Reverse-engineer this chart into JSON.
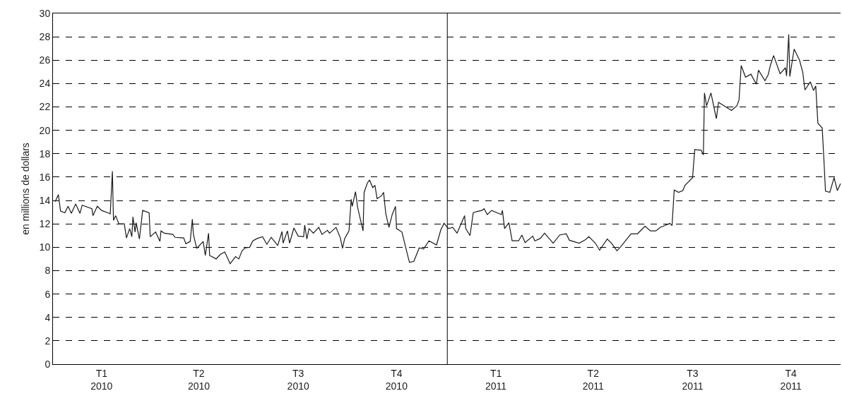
{
  "chart_data": {
    "type": "line",
    "ylabel": "en millions de dollars",
    "xlim": [
      "2010-01-01",
      "2011-12-31"
    ],
    "xticks": [
      {
        "value": "2010-02-15",
        "label": "T1\n2010"
      },
      {
        "value": "2010-05-16",
        "label": "T2\n2010"
      },
      {
        "value": "2010-08-16",
        "label": "T3\n2010"
      },
      {
        "value": "2010-11-15",
        "label": "T4\n2010"
      },
      {
        "value": "2011-02-15",
        "label": "T1\n2011"
      },
      {
        "value": "2011-05-16",
        "label": "T2\n2011"
      },
      {
        "value": "2011-08-16",
        "label": "T3\n2011"
      },
      {
        "value": "2011-11-15",
        "label": "T4\n2011"
      }
    ],
    "ylim": [
      0,
      30
    ],
    "yticks": [
      0,
      2,
      4,
      6,
      8,
      10,
      12,
      14,
      16,
      18,
      20,
      22,
      24,
      26,
      28,
      30
    ],
    "grid": "y",
    "marker": "none",
    "line_style": "solid",
    "ref_lines": [
      {
        "axis": "x",
        "value": "2011-01-01",
        "label": null,
        "color": "#000000",
        "line_style": "solid"
      }
    ],
    "series": [
      {
        "color": "#1a1a1a",
        "x": [
          "2010-01-03",
          "2010-01-06",
          "2010-01-08",
          "2010-01-12",
          "2010-01-15",
          "2010-01-18",
          "2010-01-22",
          "2010-01-26",
          "2010-01-28",
          "2010-02-06",
          "2010-02-07",
          "2010-02-11",
          "2010-02-15",
          "2010-02-22",
          "2010-02-23",
          "2010-02-25",
          "2010-02-26",
          "2010-02-28",
          "2010-03-03",
          "2010-03-08",
          "2010-03-10",
          "2010-03-13",
          "2010-03-15",
          "2010-03-16",
          "2010-03-18",
          "2010-03-19",
          "2010-03-22",
          "2010-03-25",
          "2010-03-31",
          "2010-04-01",
          "2010-04-06",
          "2010-04-10",
          "2010-04-11",
          "2010-04-14",
          "2010-04-22",
          "2010-04-24",
          "2010-05-02",
          "2010-05-04",
          "2010-05-08",
          "2010-05-10",
          "2010-05-11",
          "2010-05-14",
          "2010-05-20",
          "2010-05-22",
          "2010-05-25",
          "2010-05-26",
          "2010-06-01",
          "2010-06-05",
          "2010-06-09",
          "2010-06-14",
          "2010-06-19",
          "2010-06-22",
          "2010-06-25",
          "2010-06-28",
          "2010-07-02",
          "2010-07-05",
          "2010-07-09",
          "2010-07-14",
          "2010-07-18",
          "2010-07-22",
          "2010-07-28",
          "2010-08-01",
          "2010-08-02",
          "2010-08-06",
          "2010-08-08",
          "2010-08-12",
          "2010-08-16",
          "2010-08-21",
          "2010-08-22",
          "2010-08-24",
          "2010-08-26",
          "2010-08-30",
          "2010-09-04",
          "2010-09-07",
          "2010-09-12",
          "2010-09-14",
          "2010-09-20",
          "2010-09-24",
          "2010-09-26",
          "2010-09-28",
          "2010-10-02",
          "2010-10-04",
          "2010-10-05",
          "2010-10-08",
          "2010-10-10",
          "2010-10-15",
          "2010-10-16",
          "2010-10-19",
          "2010-10-21",
          "2010-10-24",
          "2010-10-26",
          "2010-10-28",
          "2010-11-01",
          "2010-11-03",
          "2010-11-05",
          "2010-11-08",
          "2010-11-11",
          "2010-11-14",
          "2010-11-15",
          "2010-11-20",
          "2010-11-26",
          "2010-11-27",
          "2010-12-01",
          "2010-12-06",
          "2010-12-10",
          "2010-12-15",
          "2010-12-22",
          "2010-12-26",
          "2010-12-29",
          "2011-01-02",
          "2011-01-06",
          "2011-01-10",
          "2011-01-17",
          "2011-01-18",
          "2011-01-22",
          "2011-01-25",
          "2011-01-28",
          "2011-02-02",
          "2011-02-04",
          "2011-02-07",
          "2011-02-11",
          "2011-02-20",
          "2011-02-21",
          "2011-02-23",
          "2011-02-27",
          "2011-03-02",
          "2011-03-08",
          "2011-03-11",
          "2011-03-14",
          "2011-03-21",
          "2011-03-23",
          "2011-03-28",
          "2011-04-01",
          "2011-04-09",
          "2011-04-15",
          "2011-04-21",
          "2011-04-24",
          "2011-05-03",
          "2011-05-09",
          "2011-05-12",
          "2011-05-18",
          "2011-05-22",
          "2011-05-29",
          "2011-06-02",
          "2011-06-07",
          "2011-06-11",
          "2011-06-20",
          "2011-06-26",
          "2011-07-03",
          "2011-07-08",
          "2011-07-13",
          "2011-07-17",
          "2011-07-21",
          "2011-07-26",
          "2011-07-28",
          "2011-07-30",
          "2011-08-03",
          "2011-08-07",
          "2011-08-09",
          "2011-08-16",
          "2011-08-18",
          "2011-08-24",
          "2011-08-26",
          "2011-08-27",
          "2011-08-29",
          "2011-09-02",
          "2011-09-07",
          "2011-09-09",
          "2011-09-15",
          "2011-09-21",
          "2011-09-26",
          "2011-09-28",
          "2011-09-30",
          "2011-10-04",
          "2011-10-09",
          "2011-10-14",
          "2011-10-16",
          "2011-10-22",
          "2011-10-25",
          "2011-10-27",
          "2011-10-30",
          "2011-11-05",
          "2011-11-10",
          "2011-11-11",
          "2011-11-13",
          "2011-11-14",
          "2011-11-18",
          "2011-11-23",
          "2011-11-26",
          "2011-11-28",
          "2011-12-03",
          "2011-12-06",
          "2011-12-08",
          "2011-12-10",
          "2011-12-14",
          "2011-12-16",
          "2011-12-17",
          "2011-12-21",
          "2011-12-25",
          "2011-12-28",
          "2011-12-31"
        ],
        "values": [
          13.9,
          14.5,
          13.1,
          12.95,
          13.5,
          12.9,
          13.7,
          12.9,
          13.6,
          13.3,
          12.7,
          13.5,
          13.15,
          12.9,
          12.85,
          16.5,
          12.3,
          12.7,
          12.0,
          12.0,
          10.8,
          11.6,
          10.9,
          12.6,
          11.3,
          12.1,
          10.7,
          13.15,
          12.95,
          10.9,
          11.3,
          10.5,
          11.4,
          11.2,
          11.1,
          10.85,
          10.8,
          10.3,
          10.5,
          12.4,
          11.1,
          9.9,
          10.5,
          9.3,
          11.2,
          9.3,
          9.0,
          9.4,
          9.6,
          8.6,
          9.2,
          9.0,
          9.7,
          9.95,
          10.0,
          10.55,
          10.75,
          10.9,
          10.25,
          10.85,
          10.15,
          11.35,
          10.35,
          11.4,
          10.35,
          11.65,
          10.95,
          10.9,
          11.9,
          10.7,
          11.6,
          11.2,
          11.7,
          11.1,
          11.45,
          11.2,
          11.7,
          10.8,
          9.9,
          10.75,
          11.4,
          14.1,
          13.5,
          14.75,
          13.4,
          11.4,
          14.7,
          15.5,
          15.75,
          15.1,
          15.3,
          14.15,
          14.4,
          14.7,
          12.9,
          11.7,
          12.8,
          13.5,
          11.6,
          11.3,
          9.05,
          8.7,
          8.8,
          9.95,
          9.85,
          10.55,
          10.2,
          11.5,
          12.05,
          11.6,
          11.7,
          11.2,
          12.7,
          11.6,
          11.0,
          12.95,
          13.05,
          13.15,
          13.3,
          12.8,
          13.15,
          12.8,
          13.15,
          11.6,
          12.1,
          10.55,
          10.55,
          11.05,
          10.4,
          10.95,
          10.55,
          10.75,
          11.2,
          10.35,
          11.05,
          11.15,
          10.6,
          10.35,
          10.65,
          10.9,
          10.35,
          9.75,
          10.7,
          10.35,
          9.7,
          10.1,
          11.15,
          11.15,
          11.8,
          11.4,
          11.4,
          11.7,
          11.85,
          12.05,
          11.85,
          14.9,
          14.7,
          14.85,
          15.3,
          15.95,
          18.35,
          18.3,
          17.9,
          23.2,
          22.1,
          23.2,
          21.0,
          22.4,
          22.05,
          21.7,
          22.1,
          22.6,
          25.55,
          24.55,
          24.8,
          23.95,
          25.15,
          24.25,
          24.75,
          25.55,
          26.4,
          24.85,
          25.35,
          24.65,
          28.2,
          24.6,
          26.95,
          26.0,
          24.95,
          23.45,
          24.15,
          23.4,
          23.8,
          20.6,
          20.2,
          16.7,
          14.8,
          14.7,
          15.95,
          14.85,
          15.45
        ]
      }
    ]
  }
}
